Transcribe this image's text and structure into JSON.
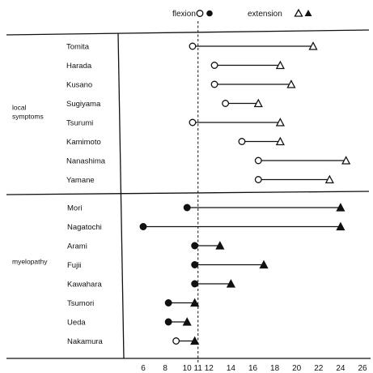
{
  "chart_data": {
    "type": "dot-range",
    "title": "",
    "xlabel": "",
    "ylabel": "",
    "xlim": [
      2,
      27
    ],
    "xticks": [
      6,
      8,
      10,
      11,
      12,
      14,
      16,
      18,
      20,
      22,
      24,
      26
    ],
    "reference_line": {
      "x": 11,
      "style": "dashed"
    },
    "legend": {
      "position": "top",
      "items": [
        {
          "label": "flexion",
          "markers": [
            "open-circle",
            "filled-circle"
          ]
        },
        {
          "label": "extension",
          "markers": [
            "open-triangle",
            "filled-triangle"
          ]
        }
      ]
    },
    "groups": [
      {
        "label_lines": [
          "local",
          "symptoms"
        ],
        "marker_fill": "open",
        "subjects": [
          {
            "name": "Tomita",
            "flexion": 10.5,
            "extension": 21.5
          },
          {
            "name": "Harada",
            "flexion": 12.5,
            "extension": 18.5
          },
          {
            "name": "Kusano",
            "flexion": 12.5,
            "extension": 19.5
          },
          {
            "name": "Sugiyama",
            "flexion": 13.5,
            "extension": 16.5
          },
          {
            "name": "Tsurumi",
            "flexion": 10.5,
            "extension": 18.5
          },
          {
            "name": "Kamimoto",
            "flexion": 15.0,
            "extension": 18.5
          },
          {
            "name": "Nanashima",
            "flexion": 16.5,
            "extension": 24.5
          },
          {
            "name": "Yamane",
            "flexion": 16.5,
            "extension": 23.0
          }
        ]
      },
      {
        "label_lines": [
          "myelopathy"
        ],
        "marker_fill": "filled",
        "subjects": [
          {
            "name": "Mori",
            "flexion": 10.0,
            "extension": 24.0
          },
          {
            "name": "Nagatochi",
            "flexion": 6.0,
            "extension": 24.0
          },
          {
            "name": "Arami",
            "flexion": 10.7,
            "extension": 13.0
          },
          {
            "name": "Fujii",
            "flexion": 10.7,
            "extension": 17.0
          },
          {
            "name": "Kawahara",
            "flexion": 10.7,
            "extension": 14.0
          },
          {
            "name": "Tsumori",
            "flexion": 8.3,
            "extension": 10.7
          },
          {
            "name": "Ueda",
            "flexion": 8.3,
            "extension": 10.0
          },
          {
            "name": "Nakamura",
            "flexion": 9.0,
            "extension": 10.7,
            "flexion_marker": "open"
          }
        ]
      }
    ]
  }
}
